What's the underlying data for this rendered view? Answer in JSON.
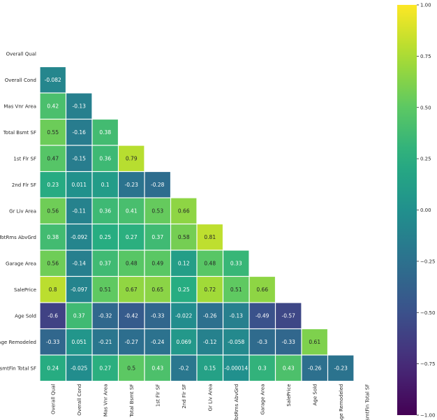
{
  "chart_data": {
    "type": "heatmap",
    "variables": [
      "Overall Qual",
      "Overall Cond",
      "Mas Vnr Area",
      "Total Bsmt SF",
      "1st Flr SF",
      "2nd Flr SF",
      "Gr Liv Area",
      "TotRms AbvGrd",
      "Garage Area",
      "SalePrice",
      "Age Sold",
      "Age Remodeled",
      "BsmtFin Total SF"
    ],
    "mask": "upper-triangle-including-diagonal",
    "cells": [
      [],
      [
        "-0.082"
      ],
      [
        "0.42",
        "-0.13"
      ],
      [
        "0.55",
        "-0.16",
        "0.38"
      ],
      [
        "0.47",
        "-0.15",
        "0.36",
        "0.79"
      ],
      [
        "0.23",
        "0.011",
        "0.1",
        "-0.23",
        "-0.28"
      ],
      [
        "0.56",
        "-0.11",
        "0.36",
        "0.41",
        "0.53",
        "0.66"
      ],
      [
        "0.38",
        "-0.092",
        "0.25",
        "0.27",
        "0.37",
        "0.58",
        "0.81"
      ],
      [
        "0.56",
        "-0.14",
        "0.37",
        "0.48",
        "0.49",
        "0.12",
        "0.48",
        "0.33"
      ],
      [
        "0.8",
        "-0.097",
        "0.51",
        "0.67",
        "0.65",
        "0.25",
        "0.72",
        "0.51",
        "0.66"
      ],
      [
        "-0.6",
        "0.37",
        "-0.32",
        "-0.42",
        "-0.33",
        "-0.022",
        "-0.26",
        "-0.13",
        "-0.49",
        "-0.57"
      ],
      [
        "-0.33",
        "0.051",
        "-0.21",
        "-0.27",
        "-0.24",
        "0.069",
        "-0.12",
        "-0.058",
        "-0.3",
        "-0.33",
        "0.61"
      ],
      [
        "0.24",
        "-0.025",
        "0.27",
        "0.5",
        "0.43",
        "-0.2",
        "0.15",
        "-0.00014",
        "0.3",
        "0.43",
        "-0.26",
        "-0.23"
      ]
    ],
    "colorbar": {
      "colormap": "viridis",
      "vmin": -1.0,
      "vmax": 1.0,
      "ticks": [
        "1.00",
        "0.75",
        "0.50",
        "0.25",
        "0.00",
        "−0.25",
        "−0.50",
        "−0.75",
        "−1.00"
      ]
    }
  }
}
